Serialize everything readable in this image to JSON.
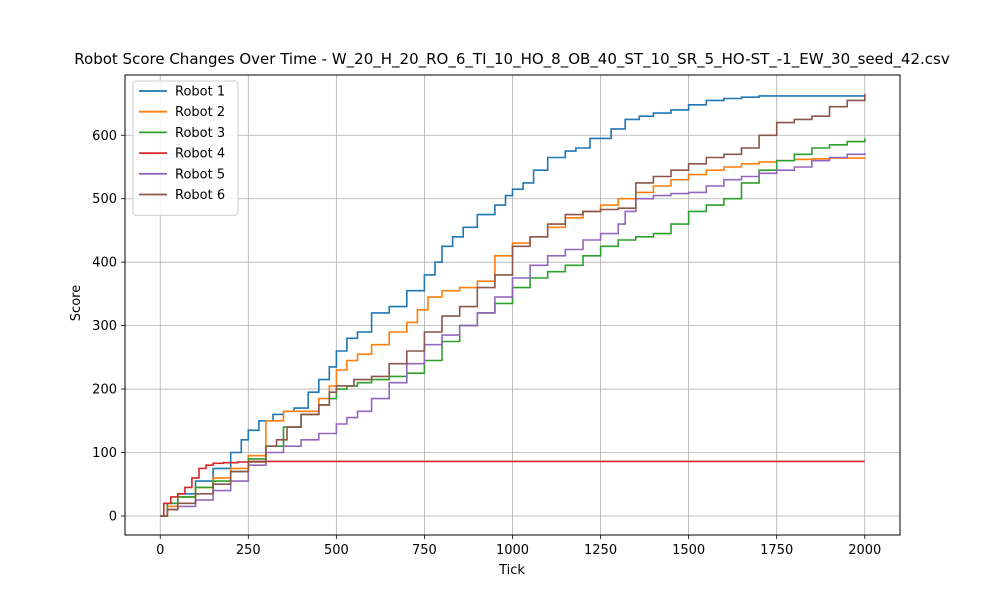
{
  "chart_data": {
    "type": "line",
    "step": true,
    "title": "Robot Score Changes Over Time - W_20_H_20_RO_6_TI_10_HO_8_OB_40_ST_10_SR_5_HO-ST_-1_EW_30_seed_42.csv",
    "xlabel": "Tick",
    "ylabel": "Score",
    "xlim": [
      -100,
      2100
    ],
    "ylim": [
      -30,
      695
    ],
    "xticks": [
      0,
      250,
      500,
      750,
      1000,
      1250,
      1500,
      1750,
      2000
    ],
    "yticks": [
      0,
      100,
      200,
      300,
      400,
      500,
      600
    ],
    "grid": true,
    "legend_position": "top-left",
    "series": [
      {
        "name": "Robot 1",
        "color": "#1f77b4",
        "x": [
          0,
          20,
          50,
          100,
          150,
          200,
          230,
          250,
          280,
          320,
          350,
          380,
          420,
          450,
          480,
          500,
          530,
          560,
          600,
          650,
          700,
          750,
          780,
          800,
          830,
          860,
          900,
          950,
          980,
          1000,
          1030,
          1060,
          1100,
          1150,
          1180,
          1220,
          1280,
          1320,
          1360,
          1400,
          1450,
          1500,
          1550,
          1600,
          1650,
          1700,
          1750,
          1800,
          1850,
          1900,
          1950,
          2000
        ],
        "y": [
          0,
          20,
          35,
          55,
          75,
          100,
          120,
          135,
          150,
          160,
          165,
          170,
          195,
          215,
          235,
          260,
          280,
          290,
          320,
          330,
          355,
          380,
          400,
          425,
          440,
          455,
          475,
          490,
          505,
          515,
          525,
          545,
          565,
          575,
          580,
          595,
          610,
          625,
          630,
          635,
          640,
          648,
          655,
          658,
          660,
          662,
          662,
          662,
          662,
          662,
          662,
          663
        ]
      },
      {
        "name": "Robot 2",
        "color": "#ff7f0e",
        "x": [
          0,
          20,
          50,
          100,
          150,
          200,
          250,
          300,
          350,
          400,
          450,
          480,
          500,
          530,
          560,
          600,
          650,
          700,
          730,
          760,
          800,
          850,
          900,
          950,
          1000,
          1050,
          1100,
          1150,
          1200,
          1250,
          1300,
          1350,
          1400,
          1450,
          1500,
          1550,
          1600,
          1650,
          1700,
          1750,
          1800,
          1850,
          1900,
          1950,
          2000
        ],
        "y": [
          0,
          15,
          30,
          45,
          60,
          75,
          95,
          150,
          165,
          165,
          185,
          205,
          230,
          245,
          255,
          270,
          290,
          305,
          325,
          345,
          355,
          360,
          370,
          410,
          430,
          440,
          455,
          470,
          480,
          490,
          500,
          510,
          520,
          530,
          538,
          545,
          550,
          555,
          558,
          560,
          562,
          563,
          564,
          564,
          565
        ]
      },
      {
        "name": "Robot 3",
        "color": "#2ca02c",
        "x": [
          0,
          20,
          50,
          100,
          150,
          200,
          250,
          300,
          350,
          400,
          450,
          480,
          500,
          530,
          560,
          600,
          650,
          700,
          750,
          800,
          850,
          900,
          950,
          1000,
          1050,
          1100,
          1150,
          1200,
          1250,
          1300,
          1350,
          1400,
          1450,
          1500,
          1550,
          1600,
          1650,
          1700,
          1750,
          1800,
          1850,
          1900,
          1950,
          2000
        ],
        "y": [
          0,
          20,
          30,
          45,
          55,
          70,
          90,
          110,
          140,
          160,
          175,
          185,
          200,
          205,
          210,
          215,
          220,
          225,
          245,
          275,
          300,
          320,
          335,
          360,
          375,
          385,
          395,
          410,
          425,
          435,
          440,
          445,
          460,
          480,
          490,
          500,
          525,
          545,
          560,
          570,
          580,
          585,
          590,
          595
        ]
      },
      {
        "name": "Robot 4",
        "color": "#d62728",
        "x": [
          0,
          10,
          30,
          50,
          70,
          90,
          110,
          130,
          150,
          180,
          220,
          250,
          300,
          400,
          500,
          600,
          700,
          800,
          900,
          1000,
          1100,
          1200,
          1300,
          1400,
          1500,
          1600,
          1700,
          1800,
          1900,
          2000
        ],
        "y": [
          0,
          20,
          30,
          35,
          45,
          60,
          75,
          80,
          83,
          84,
          85,
          86,
          86,
          86,
          86,
          86,
          86,
          86,
          86,
          86,
          86,
          86,
          86,
          86,
          86,
          86,
          86,
          86,
          86,
          86
        ]
      },
      {
        "name": "Robot 5",
        "color": "#9467bd",
        "x": [
          0,
          20,
          50,
          100,
          150,
          200,
          250,
          300,
          350,
          400,
          450,
          500,
          530,
          560,
          600,
          650,
          700,
          750,
          800,
          850,
          900,
          950,
          1000,
          1050,
          1100,
          1150,
          1200,
          1250,
          1300,
          1320,
          1350,
          1400,
          1450,
          1500,
          1550,
          1600,
          1650,
          1700,
          1750,
          1800,
          1850,
          1900,
          1950,
          2000
        ],
        "y": [
          0,
          10,
          15,
          25,
          40,
          55,
          80,
          100,
          110,
          120,
          130,
          145,
          155,
          165,
          185,
          210,
          240,
          270,
          285,
          300,
          320,
          345,
          375,
          395,
          410,
          420,
          435,
          445,
          460,
          480,
          500,
          505,
          508,
          510,
          520,
          530,
          535,
          540,
          545,
          550,
          560,
          565,
          570,
          572
        ]
      },
      {
        "name": "Robot 6",
        "color": "#8c564b",
        "x": [
          0,
          20,
          50,
          100,
          150,
          200,
          250,
          300,
          330,
          360,
          400,
          450,
          480,
          500,
          550,
          600,
          650,
          700,
          750,
          800,
          850,
          900,
          950,
          1000,
          1050,
          1100,
          1150,
          1200,
          1250,
          1300,
          1350,
          1400,
          1450,
          1500,
          1550,
          1600,
          1650,
          1700,
          1750,
          1800,
          1850,
          1900,
          1950,
          2000
        ],
        "y": [
          0,
          10,
          20,
          35,
          50,
          70,
          85,
          110,
          120,
          140,
          160,
          175,
          195,
          205,
          215,
          220,
          240,
          260,
          290,
          315,
          330,
          360,
          380,
          425,
          440,
          460,
          475,
          480,
          483,
          485,
          525,
          535,
          545,
          555,
          565,
          570,
          580,
          600,
          620,
          625,
          630,
          645,
          655,
          665
        ]
      }
    ]
  }
}
